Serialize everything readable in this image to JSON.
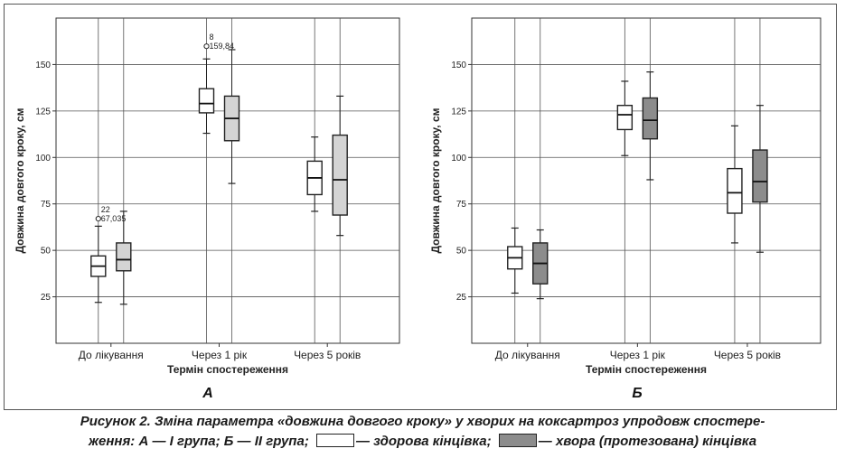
{
  "caption": {
    "line1": "Рисунок 2. Зміна параметра «довжина довгого кроку» у хворих на коксартроз упродовж спостере-",
    "line2_pre": "ження: А — І група; Б — ІІ група;",
    "legend_healthy": "— здорова кінцівка;",
    "legend_sick": "— хвора (протезована) кінцівка",
    "healthy_color": "#ffffff",
    "sick_color": "#8c8c8c"
  },
  "chart_data": [
    {
      "type": "box",
      "panel_label": "А",
      "xlabel": "Термін спостереження",
      "ylabel": "Довжина довгого кроку, см",
      "ylim": [
        0,
        175
      ],
      "yticks": [
        25,
        50,
        75,
        100,
        125,
        150
      ],
      "grid": true,
      "categories": [
        "До лікування",
        "Через 1 рік",
        "Через 5 років"
      ],
      "series": [
        {
          "color": "#ffffff",
          "boxes": [
            {
              "min": 22,
              "q1": 36,
              "median": 41.5,
              "q3": 47,
              "max": 63
            },
            {
              "min": 113,
              "q1": 124,
              "median": 129,
              "q3": 137,
              "max": 153
            },
            {
              "min": 71,
              "q1": 80,
              "median": 89,
              "q3": 98,
              "max": 111
            }
          ]
        },
        {
          "color": "#d4d4d4",
          "boxes": [
            {
              "min": 21,
              "q1": 39,
              "median": 45,
              "q3": 54,
              "max": 71
            },
            {
              "min": 86,
              "q1": 109,
              "median": 121,
              "q3": 133,
              "max": 158
            },
            {
              "min": 58,
              "q1": 69,
              "median": 88,
              "q3": 112,
              "max": 133
            }
          ]
        }
      ],
      "outliers": [
        {
          "category": 0,
          "series": 0,
          "value": 67.035,
          "label1": "22",
          "label2": "67,035"
        },
        {
          "category": 1,
          "series": 0,
          "value": 159.84,
          "label1": "8",
          "label2": "159,84"
        }
      ]
    },
    {
      "type": "box",
      "panel_label": "Б",
      "xlabel": "Термін спостереження",
      "ylabel": "Довжина довгого кроку, см",
      "ylim": [
        0,
        175
      ],
      "yticks": [
        25,
        50,
        75,
        100,
        125,
        150
      ],
      "grid": true,
      "categories": [
        "До лікування",
        "Через 1 рік",
        "Через 5 років"
      ],
      "series": [
        {
          "color": "#ffffff",
          "boxes": [
            {
              "min": 27,
              "q1": 40,
              "median": 46,
              "q3": 52,
              "max": 62
            },
            {
              "min": 101,
              "q1": 115,
              "median": 123,
              "q3": 128,
              "max": 141
            },
            {
              "min": 54,
              "q1": 70,
              "median": 81,
              "q3": 94,
              "max": 117
            }
          ]
        },
        {
          "color": "#8c8c8c",
          "boxes": [
            {
              "min": 24,
              "q1": 32,
              "median": 43,
              "q3": 54,
              "max": 61
            },
            {
              "min": 88,
              "q1": 110,
              "median": 120,
              "q3": 132,
              "max": 146
            },
            {
              "min": 49,
              "q1": 76,
              "median": 87,
              "q3": 104,
              "max": 128
            }
          ]
        }
      ],
      "outliers": []
    }
  ]
}
